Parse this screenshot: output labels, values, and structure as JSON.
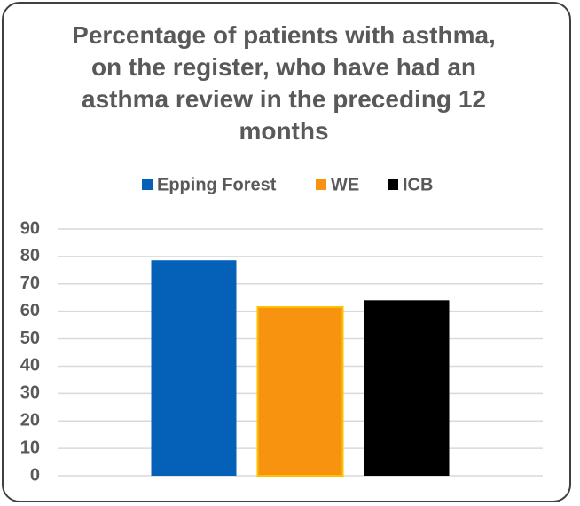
{
  "chart_data": {
    "type": "bar",
    "title": "Percentage of patients with asthma, on the register, who have had an asthma review in the preceding 12 months",
    "categories": [
      null
    ],
    "series": [
      {
        "name": "Epping Forest",
        "color": "#0561b8",
        "values": [
          78.6
        ]
      },
      {
        "name": "WE",
        "color": "#f7930f",
        "values": [
          61.5
        ]
      },
      {
        "name": "ICB",
        "color": "#000000",
        "values": [
          64
        ]
      }
    ],
    "ylim": [
      0,
      90
    ],
    "yticks": [
      0,
      10,
      20,
      30,
      40,
      50,
      60,
      70,
      80,
      90
    ],
    "grid": true,
    "legend": "top"
  }
}
